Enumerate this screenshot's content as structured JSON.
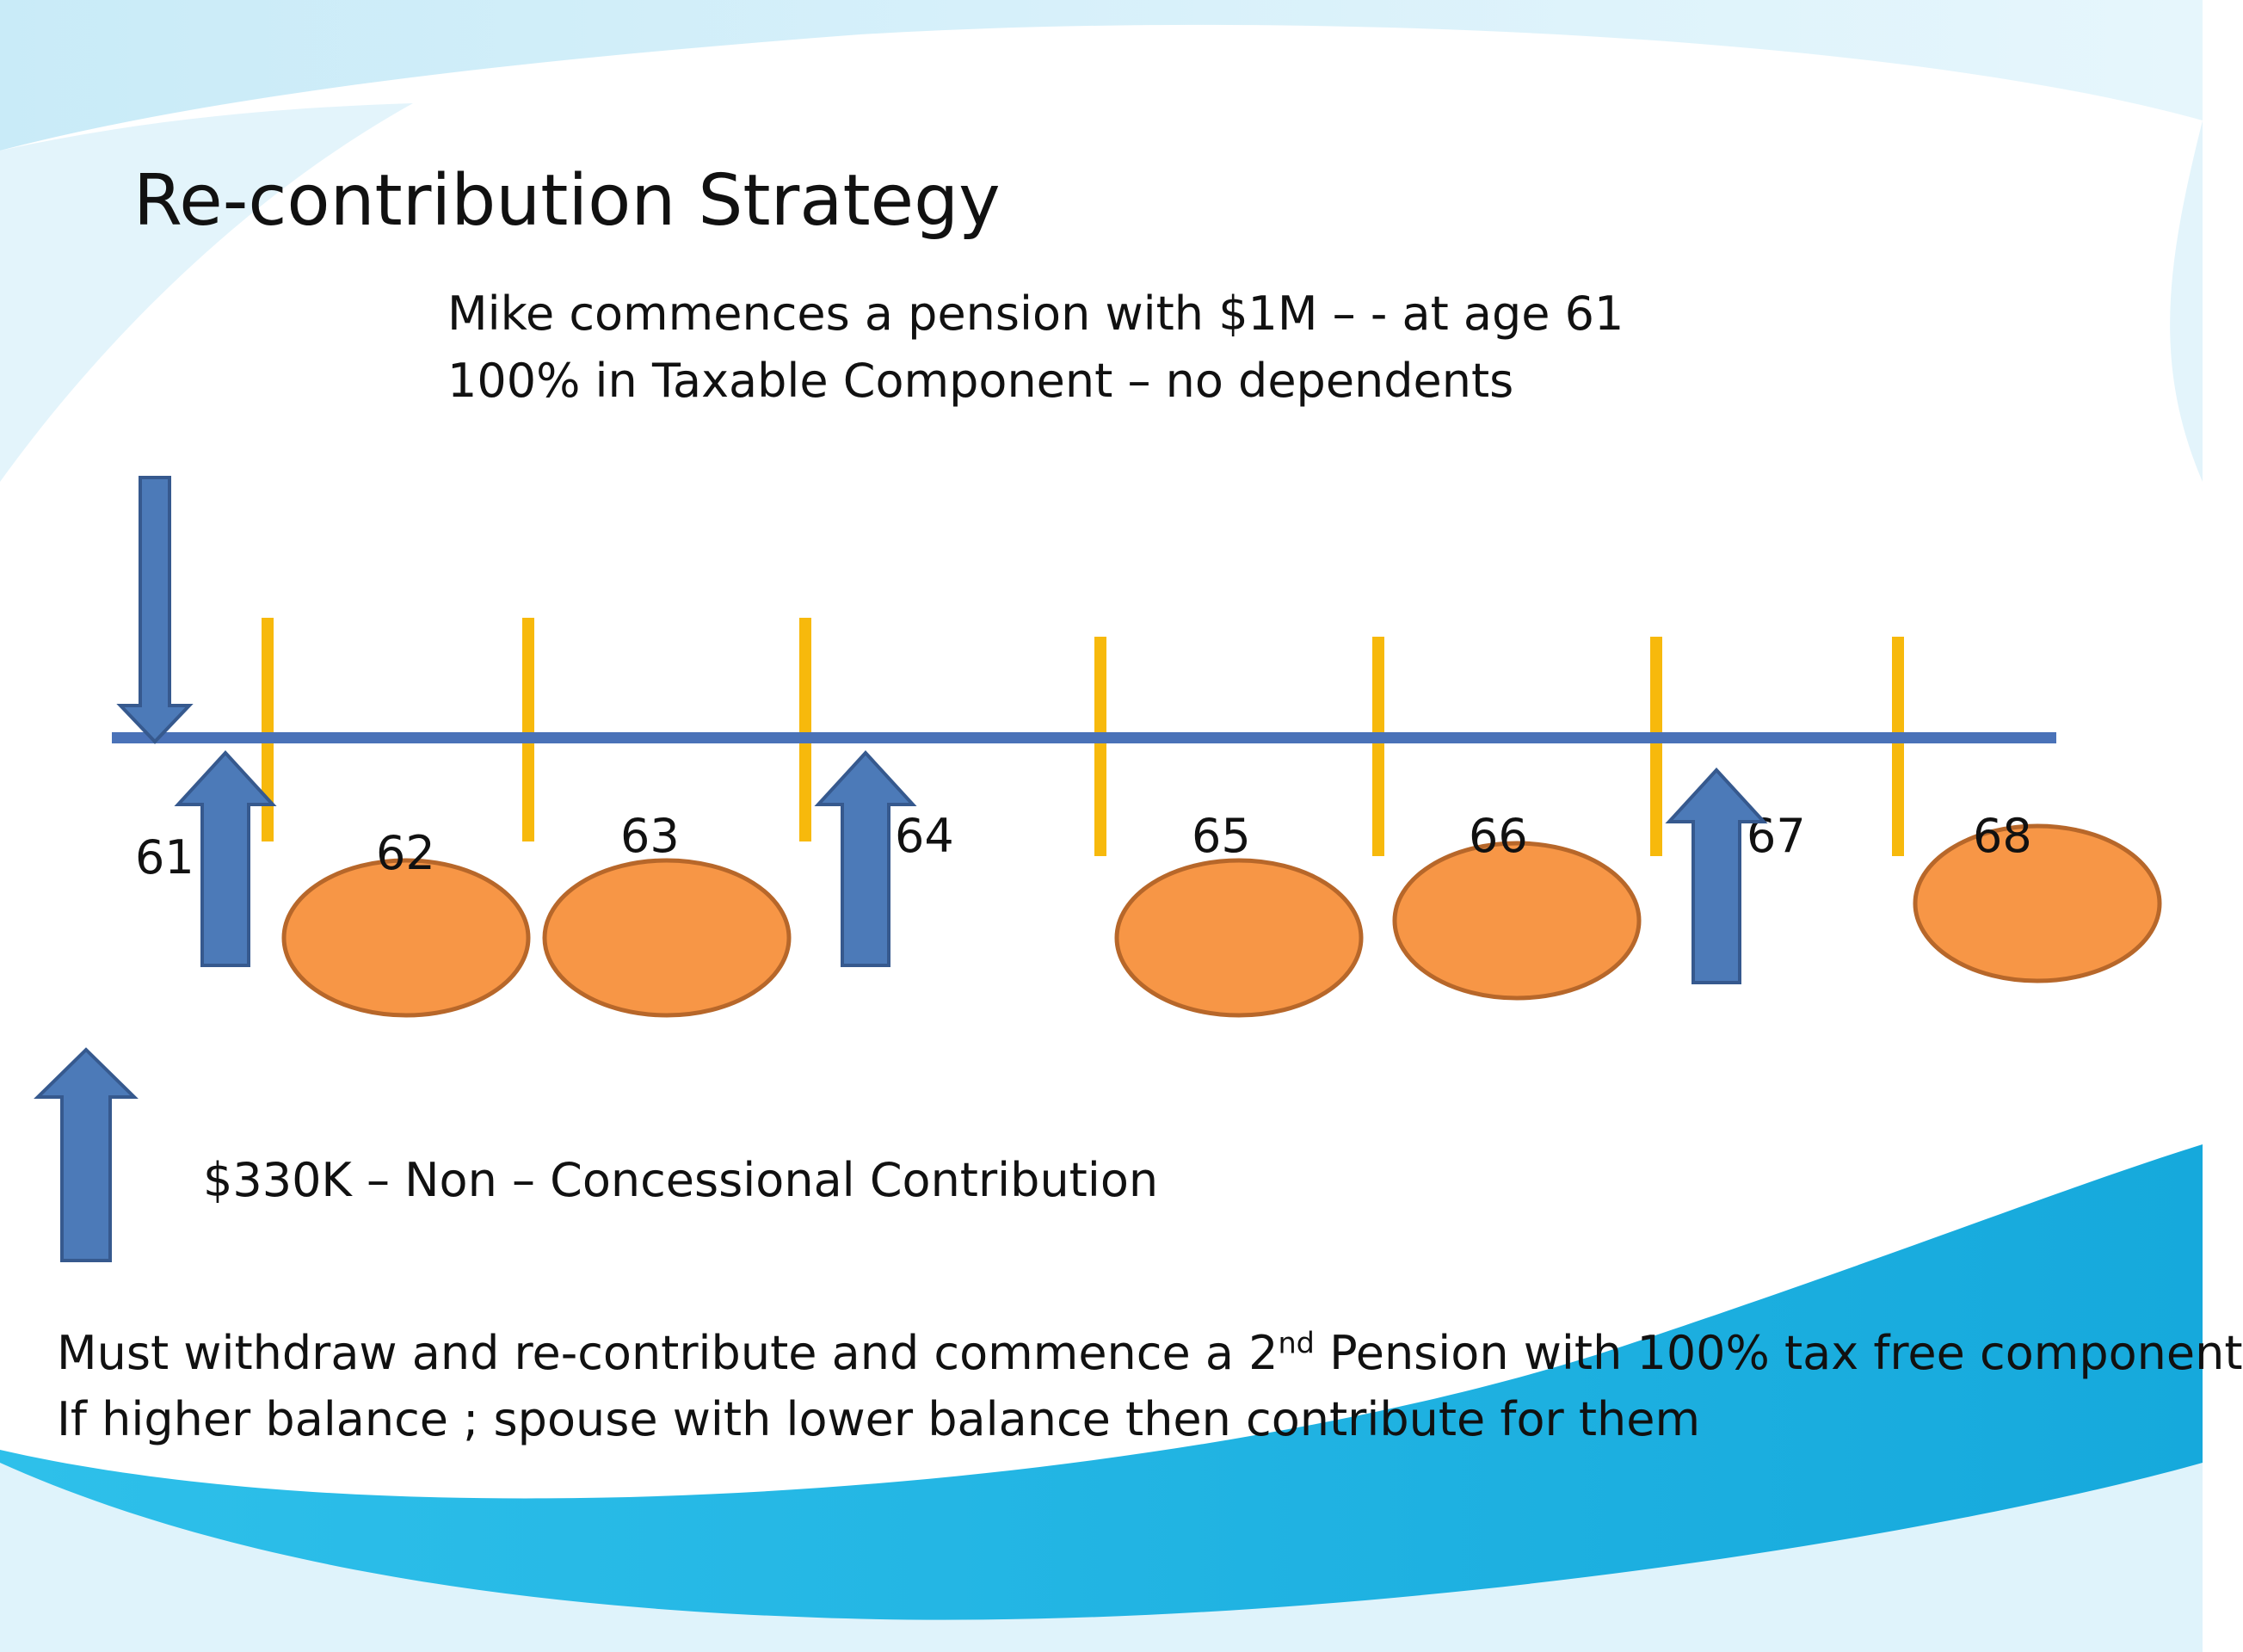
{
  "title": "Re-contribution Strategy",
  "subtitle_lines": [
    "Mike commences a pension with $1M – - at age 61",
    "100% in Taxable Component – no dependents"
  ],
  "timeline": {
    "ages": [
      "61",
      "62",
      "63",
      "64",
      "65",
      "66",
      "67",
      "68"
    ],
    "contribution_arrows_at_ages": [
      "61",
      "64",
      "67"
    ],
    "withdrawal_ellipses_at_ages": [
      "62",
      "63",
      "65",
      "66",
      "68"
    ]
  },
  "legend": {
    "arrow_label": "$330K – Non – Concessional Contribution"
  },
  "notes": {
    "line1_before": "Must withdraw and re-contribute and commence a 2",
    "line1_sup": "nd",
    "line1_after": " Pension with 100% tax free component",
    "line2": "If higher balance ; spouse with lower balance then contribute for them"
  },
  "colors": {
    "timeline": "#4a72b8",
    "ticks": "#f7b90c",
    "arrow_fill": "#4c7ab8",
    "arrow_stroke": "#36598e",
    "ellipse_fill": "#f79646",
    "ellipse_stroke": "#b7672a",
    "wave_light": "#d9f1fb",
    "wave_dark": "#1fb3e3"
  }
}
